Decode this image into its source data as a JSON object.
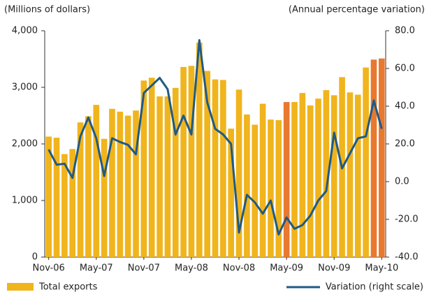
{
  "chart_data": {
    "type": "bar_line",
    "y_label": "(Millions of dollars)",
    "y2_label": "(Annual percentage variation)",
    "categories": [
      "Nov-06",
      null,
      null,
      null,
      null,
      null,
      "May-07",
      null,
      null,
      null,
      null,
      null,
      "Nov-07",
      null,
      null,
      null,
      null,
      null,
      "May-08",
      null,
      null,
      null,
      null,
      null,
      "Nov-08",
      null,
      null,
      null,
      null,
      null,
      "May-09",
      null,
      null,
      null,
      null,
      null,
      "Nov-09",
      null,
      null,
      null,
      null,
      null,
      "May-10"
    ],
    "series": [
      {
        "name": "Total exports",
        "type": "bar",
        "color": "#f0b41c",
        "bar_colors": [
          "#f0b41c",
          "#f0b41c",
          "#f0b41c",
          "#f0b41c",
          "#f0b41c",
          "#f0b41c",
          "#f0b41c",
          "#f0b41c",
          "#f0b41c",
          "#f0b41c",
          "#f0b41c",
          "#f0b41c",
          "#f0b41c",
          "#f0b41c",
          "#f0b41c",
          "#f0b41c",
          "#f0b41c",
          "#f0b41c",
          "#f0b41c",
          "#f0b41c",
          "#f0b41c",
          "#f0b41c",
          "#f0b41c",
          "#f0b41c",
          "#f0b41c",
          "#f0b41c",
          "#f0b41c",
          "#f0b41c",
          "#f0b41c",
          "#f0b41c",
          "#e8792e",
          "#f0b41c",
          "#f0b41c",
          "#f0b41c",
          "#f0b41c",
          "#f0b41c",
          "#f0b41c",
          "#f0b41c",
          "#f0b41c",
          "#f0b41c",
          "#f0b41c",
          "#e8792e",
          "#e8792e"
        ],
        "values": [
          2130,
          2110,
          1820,
          1910,
          2380,
          2490,
          2690,
          2090,
          2620,
          2570,
          2500,
          2590,
          3120,
          3170,
          2840,
          2840,
          2990,
          3360,
          3380,
          3790,
          3290,
          3140,
          3130,
          2270,
          2960,
          2520,
          2340,
          2710,
          2430,
          2420,
          2740,
          2740,
          2900,
          2680,
          2800,
          2950,
          2860,
          3180,
          2910,
          2870,
          3350,
          3490,
          3510
        ]
      },
      {
        "name": "Variation (right scale)",
        "type": "line",
        "axis": "y2",
        "color": "#1f5a85",
        "values": [
          17,
          9,
          9.5,
          2,
          24,
          34,
          23,
          3,
          23,
          21,
          19.5,
          14.5,
          47,
          51,
          55,
          49,
          25,
          35,
          25,
          75,
          42,
          28,
          25,
          20,
          -27,
          -7,
          -11,
          -17,
          -10,
          -28,
          -19,
          -25,
          -23,
          -18,
          -10,
          -5,
          26,
          7,
          15,
          23,
          24,
          43,
          28
        ]
      }
    ],
    "ylim": [
      0,
      4000
    ],
    "yticks": [
      0,
      {
        "value": 1000,
        "label": "1,000"
      },
      {
        "value": 2000,
        "label": "2,000"
      },
      {
        "value": 3000,
        "label": "3,000"
      },
      {
        "value": 4000,
        "label": "4,000"
      }
    ],
    "y2lim": [
      -40,
      80
    ],
    "y2ticks": [
      {
        "value": -40,
        "label": "-40.0"
      },
      {
        "value": -20,
        "label": "-20.0"
      },
      {
        "value": 0,
        "label": "0.0"
      },
      {
        "value": 20,
        "label": "20.0"
      },
      {
        "value": 40,
        "label": "40.0"
      },
      {
        "value": 60,
        "label": "60.0"
      },
      {
        "value": 80,
        "label": "80.0"
      }
    ],
    "grid": false
  }
}
